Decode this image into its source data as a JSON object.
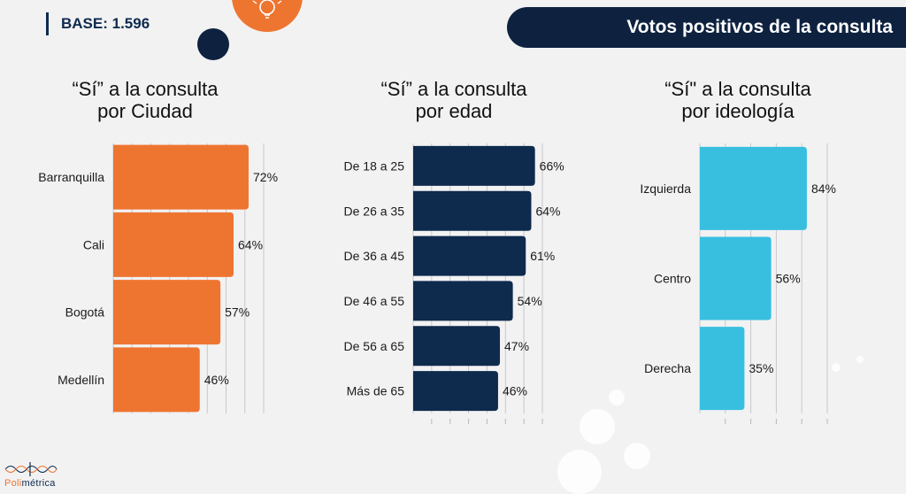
{
  "header": {
    "base_label": "BASE: 1.596",
    "title": "Votos positivos de la consulta"
  },
  "logo": {
    "text_a": "Poli",
    "text_b": "métrica"
  },
  "colors": {
    "orange": "#ee7530",
    "navy": "#0e2a4d",
    "cyan": "#38bfe0",
    "header_bg": "#0e2240"
  },
  "icons": {
    "header_circle": "lightbulb-icon"
  },
  "chart_data": [
    {
      "type": "bar",
      "orientation": "horizontal",
      "title_line1": "“Sí” a la consulta",
      "title_line2": "por Ciudad",
      "categories": [
        "Barranquilla",
        "Cali",
        "Bogotá",
        "Medellín"
      ],
      "values": [
        72,
        64,
        57,
        46
      ],
      "labels": [
        "72%",
        "64%",
        "57%",
        "46%"
      ],
      "color": "#ee7530",
      "xlim": [
        0,
        80
      ]
    },
    {
      "type": "bar",
      "orientation": "horizontal",
      "title_line1": "“Sí” a la consulta",
      "title_line2": "por edad",
      "categories": [
        "De 18 a 25",
        "De 26 a 35",
        "De 36 a 45",
        "De 46 a 55",
        "De 56 a 65",
        "Más de 65"
      ],
      "values": [
        66,
        64,
        61,
        54,
        47,
        46
      ],
      "labels": [
        "66%",
        "64%",
        "61%",
        "54%",
        "47%",
        "46%"
      ],
      "color": "#0e2a4d",
      "xlim": [
        0,
        70
      ]
    },
    {
      "type": "bar",
      "orientation": "horizontal",
      "title_line1": "“Sí\" a la consulta",
      "title_line2": "por ideología",
      "categories": [
        "Izquierda",
        "Centro",
        "Derecha"
      ],
      "values": [
        84,
        56,
        35
      ],
      "labels": [
        "84%",
        "56%",
        "35%"
      ],
      "color": "#38bfe0",
      "xlim": [
        0,
        100
      ]
    }
  ]
}
